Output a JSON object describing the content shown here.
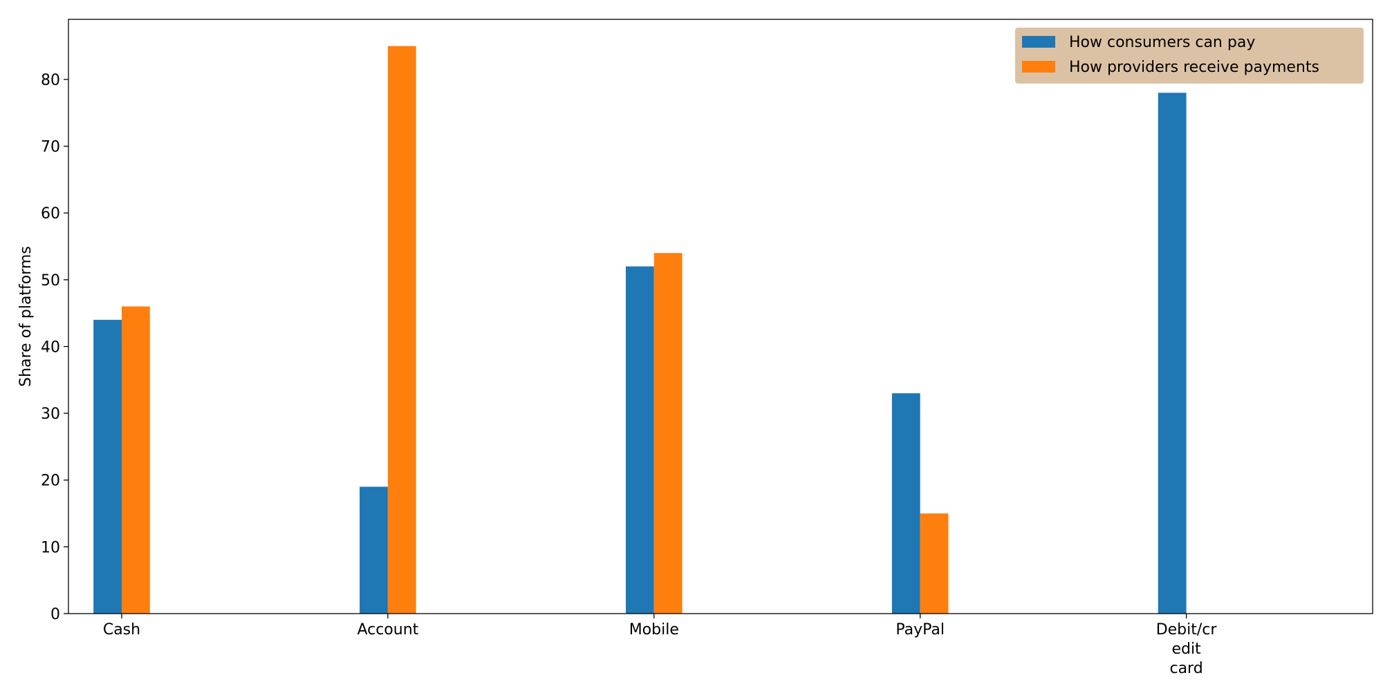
{
  "chart_data": {
    "type": "bar",
    "categories": [
      "Cash",
      "Account",
      "Mobile",
      "PayPal",
      "Debit/credit card"
    ],
    "category_tick_lines": [
      [
        "Cash"
      ],
      [
        "Account"
      ],
      [
        "Mobile"
      ],
      [
        "PayPal"
      ],
      [
        "Debit/cr",
        "edit",
        "card"
      ]
    ],
    "series": [
      {
        "name": "How consumers can pay",
        "color": "#1f77b4",
        "values": [
          44,
          19,
          52,
          33,
          78
        ]
      },
      {
        "name": "How providers receive payments",
        "color": "#ff7f0e",
        "values": [
          46,
          85,
          54,
          15,
          null
        ]
      }
    ],
    "xlabel": "",
    "ylabel": "Share of platforms",
    "ylim": [
      0,
      89
    ],
    "yticks": [
      0,
      10,
      20,
      30,
      40,
      50,
      60,
      70,
      80
    ],
    "grid": false,
    "legend_position": "top-right",
    "legend_background": "#dcc2a4"
  }
}
